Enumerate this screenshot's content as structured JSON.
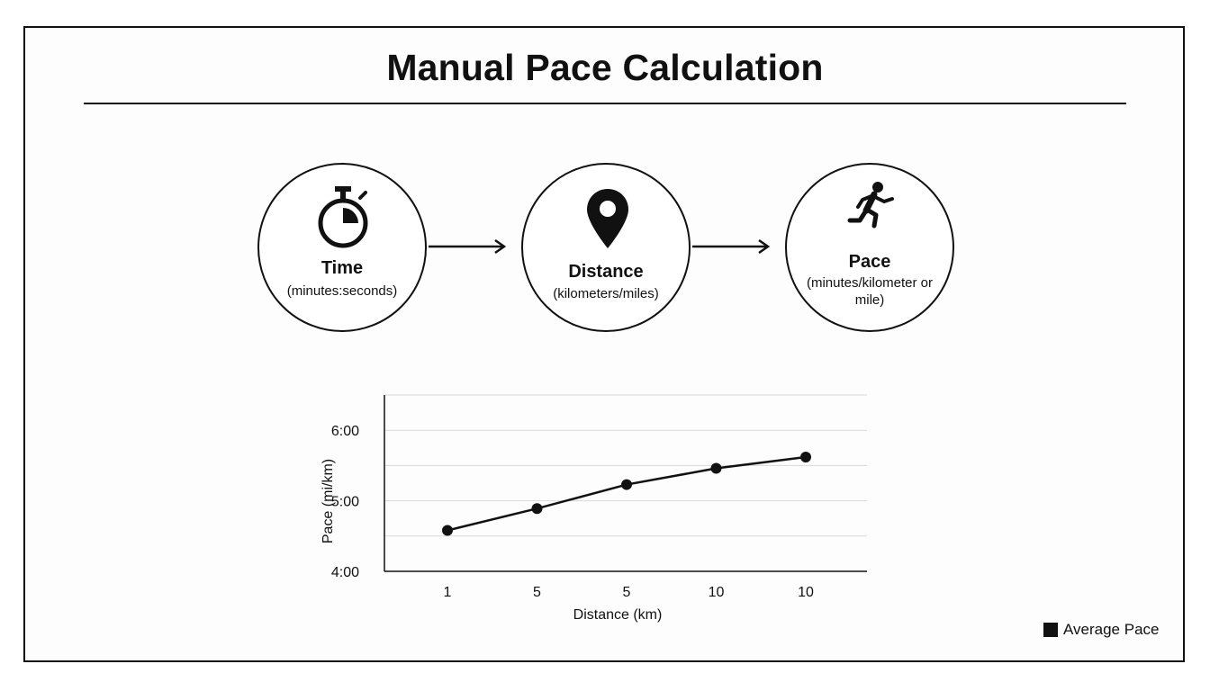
{
  "title": "Manual Pace Calculation",
  "flow": {
    "nodes": [
      {
        "label": "Time",
        "sub": "(minutes:seconds)",
        "icon": "stopwatch-icon"
      },
      {
        "label": "Distance",
        "sub": "(kilometers/miles)",
        "icon": "map-pin-icon"
      },
      {
        "label": "Pace",
        "sub": "(minutes/kilometer or mile)",
        "icon": "runner-icon"
      }
    ]
  },
  "chart_data": {
    "type": "line",
    "categories": [
      "1",
      "5",
      "5",
      "10",
      "10"
    ],
    "series": [
      {
        "name": "Average Pace",
        "values": [
          4.58,
          4.89,
          5.23,
          5.46,
          5.62
        ]
      }
    ],
    "ytick_labels": [
      "4:00",
      "5:00",
      "6:00"
    ],
    "yticks": [
      4,
      5,
      6
    ],
    "ylim": [
      4,
      6.5
    ],
    "xlabel": "Distance (km)",
    "ylabel": "Pace (mi/km)",
    "grid": true,
    "legend": "bottom-right",
    "color": "#111111"
  }
}
